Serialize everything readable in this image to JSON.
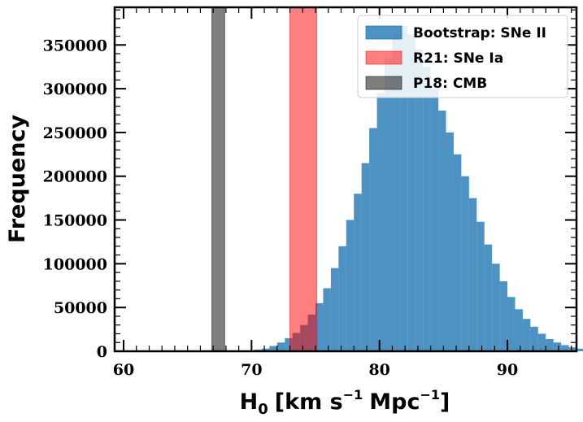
{
  "chart_data": {
    "type": "bar",
    "title": "",
    "xlabel": "H$_0$ [km s$^{-1}$ Mpc$^{-1}$]",
    "xlabel_parts": {
      "main": "H",
      "sub": "0",
      "bracket_open": "[km s",
      "exp1": "−1",
      "mid": "Mpc",
      "exp2": "−1",
      "bracket_close": "]"
    },
    "ylabel": "Frequency",
    "xlim": [
      59.3,
      95.4
    ],
    "ylim": [
      0,
      393000
    ],
    "xticks": [
      60,
      70,
      80,
      90
    ],
    "xtick_labels": [
      "60",
      "70",
      "80",
      "90"
    ],
    "yticks": [
      0,
      50000,
      100000,
      150000,
      200000,
      250000,
      300000,
      350000
    ],
    "ytick_labels": [
      "0",
      "50000",
      "100000",
      "150000",
      "200000",
      "250000",
      "300000",
      "350000"
    ],
    "histogram": {
      "name": "Bootstrap: SNe II",
      "color": "#1f77b4",
      "bin_width": 0.6,
      "bin_start": 60.0,
      "counts": [
        0,
        0,
        0,
        0,
        0,
        0,
        0,
        0,
        0,
        0,
        0,
        0,
        0,
        0,
        0,
        0,
        1000,
        2000,
        3000,
        6000,
        10000,
        15000,
        21000,
        30000,
        42000,
        55000,
        72000,
        95000,
        120000,
        150000,
        180000,
        215000,
        255000,
        295000,
        335000,
        362000,
        372000,
        362000,
        345000,
        325000,
        300000,
        275000,
        250000,
        225000,
        200000,
        175000,
        148000,
        122000,
        100000,
        80000,
        62000,
        48000,
        37000,
        28000,
        20000,
        14000,
        10000,
        7000,
        4500,
        3000,
        2000,
        1200
      ]
    },
    "bands": [
      {
        "name": "R21: SNe Ia",
        "x0": 73.0,
        "x1": 75.1,
        "color": "#ff0000",
        "alpha": 0.5
      },
      {
        "name": "P18: CMB",
        "x0": 66.9,
        "x1": 67.9,
        "color": "#000000",
        "alpha": 0.5
      }
    ],
    "legend": {
      "placement": "top-right",
      "entries": [
        {
          "label": "Bootstrap: SNe II",
          "color": "#1f77b4",
          "alpha": 0.8
        },
        {
          "label": "R21: SNe Ia",
          "color": "#ff0000",
          "alpha": 0.5
        },
        {
          "label": "P18: CMB",
          "color": "#000000",
          "alpha": 0.5
        }
      ]
    },
    "grid": false
  }
}
